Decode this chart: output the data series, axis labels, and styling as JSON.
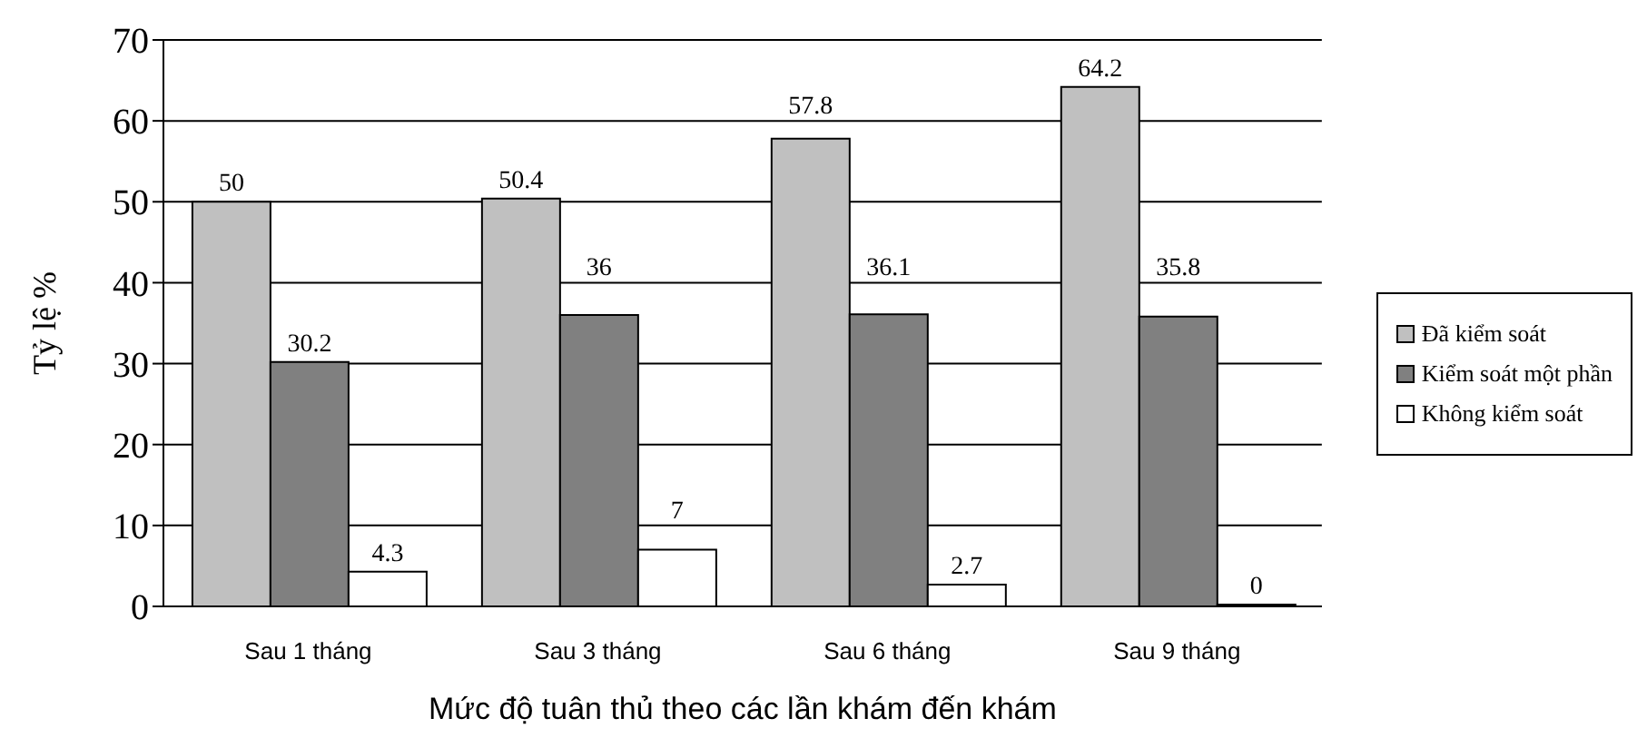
{
  "chart_data": {
    "type": "bar",
    "xlabel": "Mức độ tuân thủ theo các lần khám đến khám",
    "ylabel": "Tỷ lệ %",
    "categories": [
      "Sau 1 tháng",
      "Sau 3 tháng",
      "Sau 6 tháng",
      "Sau 9 tháng"
    ],
    "series": [
      {
        "name": "Đã kiểm soát",
        "color": "#c0c0c0",
        "values": [
          50,
          50.4,
          57.8,
          64.2
        ]
      },
      {
        "name": "Kiểm soát một phần",
        "color": "#808080",
        "values": [
          30.2,
          36,
          36.1,
          35.8
        ]
      },
      {
        "name": "Không kiểm soát",
        "color": "#ffffff",
        "values": [
          4.3,
          7,
          2.7,
          0
        ]
      }
    ],
    "ylim": [
      0,
      70
    ],
    "yticks": [
      0,
      10,
      20,
      30,
      40,
      50,
      60,
      70
    ],
    "grid": "y",
    "legend": "right",
    "data_labels": true
  }
}
